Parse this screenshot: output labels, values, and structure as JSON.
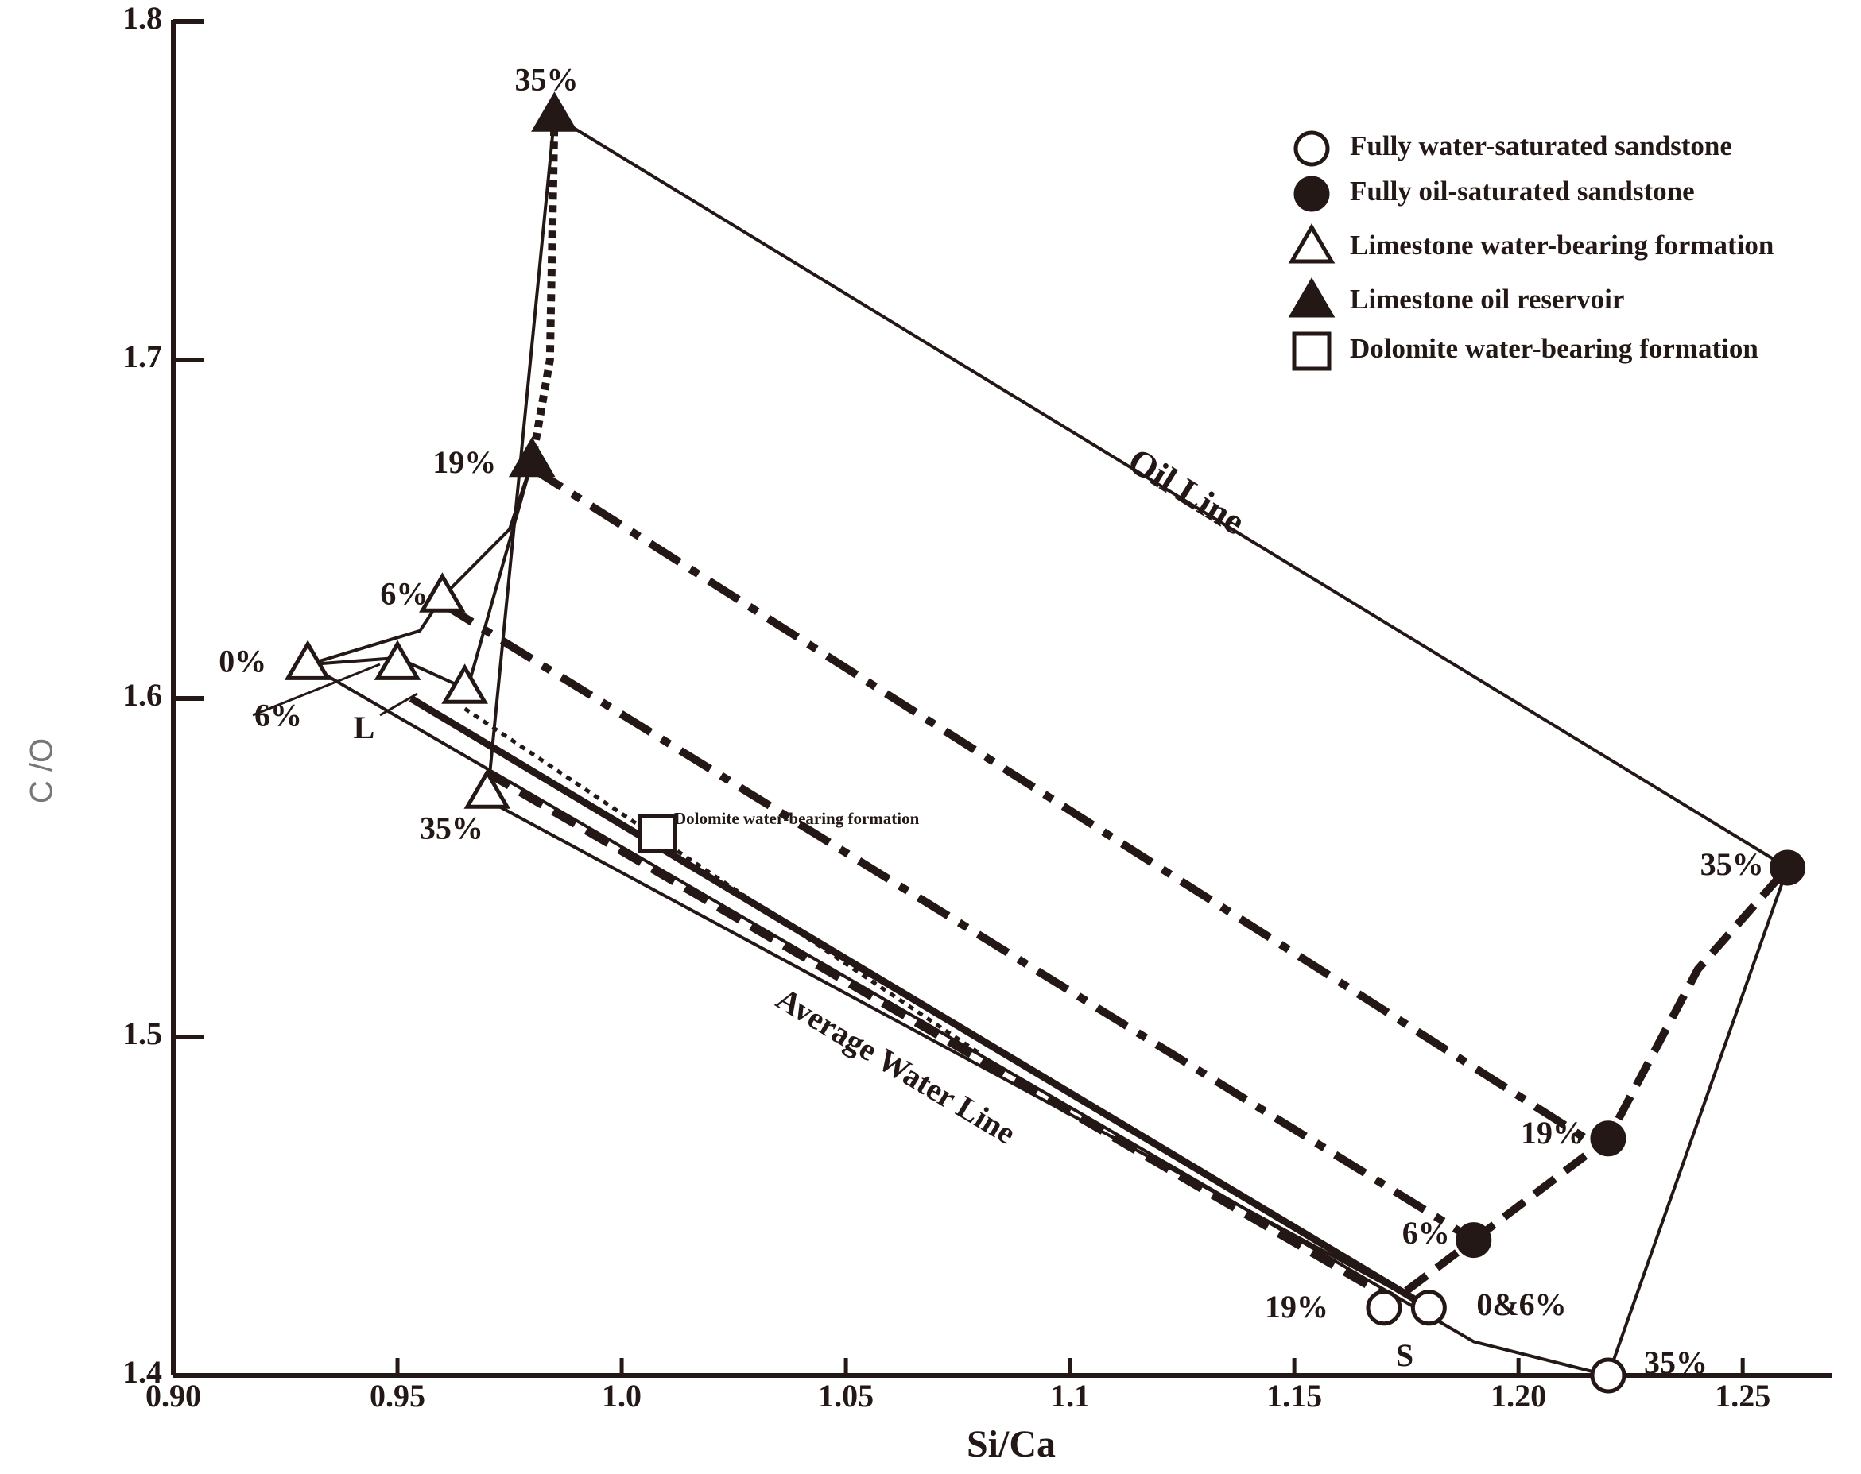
{
  "chart_data": {
    "type": "scatter",
    "x_label": "Si/Ca",
    "y_label": "C /O",
    "xlim": [
      0.9,
      1.27
    ],
    "ylim": [
      1.4,
      1.8
    ],
    "xticks": [
      {
        "value": 0.9,
        "label": "0.90"
      },
      0.95,
      {
        "value": 1,
        "label": "1.0"
      },
      1.05,
      1.1,
      1.15,
      {
        "value": 1.2,
        "label": "1.20"
      },
      1.25
    ],
    "yticks": [
      1.4,
      1.5,
      1.6,
      1.7,
      1.8
    ],
    "color": "#231815",
    "legend": "top-right",
    "series": [
      {
        "name": "Fully water-saturated sandstone",
        "marker": "circle",
        "filled": false,
        "x": [
          1.17,
          1.18,
          1.22
        ],
        "y": [
          1.42,
          1.42,
          1.4
        ],
        "point_labels": [
          "19%",
          "0&6%",
          "35%"
        ]
      },
      {
        "name": "Fully oil-saturated sandstone",
        "marker": "circle",
        "filled": true,
        "x": [
          1.19,
          1.22,
          1.26
        ],
        "y": [
          1.44,
          1.47,
          1.55
        ],
        "point_labels": [
          "6%",
          "19%",
          "35%"
        ]
      },
      {
        "name": "Limestone water-bearing formation",
        "marker": "triangle",
        "filled": false,
        "x": [
          0.93,
          0.95,
          0.96,
          0.965,
          0.97
        ],
        "y": [
          1.61,
          1.61,
          1.63,
          1.603,
          1.572
        ],
        "point_labels": [
          "0%",
          "6%",
          "6%",
          null,
          "35%"
        ]
      },
      {
        "name": "Limestone oil reservoir",
        "marker": "triangle",
        "filled": true,
        "x": [
          0.98,
          0.985
        ],
        "y": [
          1.67,
          1.772
        ],
        "point_labels": [
          "19%",
          "35%"
        ]
      },
      {
        "name": "Dolomite water-bearing formation",
        "marker": "square",
        "filled": false,
        "x": [
          1.008
        ],
        "y": [
          1.56
        ],
        "point_labels": [
          null
        ]
      }
    ],
    "lines": [
      {
        "style": "solid",
        "x": [
          0.985,
          1.26,
          1.22
        ],
        "y": [
          1.772,
          1.55,
          1.4
        ]
      },
      {
        "style": "solid",
        "x": [
          0.93,
          1.19,
          1.22
        ],
        "y": [
          1.61,
          1.41,
          1.4
        ]
      },
      {
        "style": "solid",
        "x": [
          0.97,
          1.18
        ],
        "y": [
          1.57,
          1.42
        ]
      },
      {
        "style": "solid-thick",
        "x": [
          0.953,
          1.18
        ],
        "y": [
          1.6,
          1.42
        ]
      },
      {
        "style": "solid",
        "x": [
          0.985,
          0.97
        ],
        "y": [
          1.772,
          1.57
        ]
      },
      {
        "style": "solid",
        "x": [
          0.93,
          0.955,
          0.96,
          0.975,
          0.98
        ],
        "y": [
          1.61,
          1.62,
          1.63,
          1.65,
          1.67
        ]
      },
      {
        "style": "solid",
        "x": [
          0.93,
          0.95,
          0.965
        ],
        "y": [
          1.61,
          1.612,
          1.603
        ]
      },
      {
        "style": "solid",
        "x": [
          0.98,
          0.965
        ],
        "y": [
          1.67,
          1.6
        ]
      },
      {
        "style": "dash-dot",
        "x": [
          0.98,
          1.215
        ],
        "y": [
          1.668,
          1.47
        ]
      },
      {
        "style": "dash-dot",
        "x": [
          0.96,
          1.19
        ],
        "y": [
          1.628,
          1.44
        ]
      },
      {
        "style": "dashed",
        "x": [
          0.97,
          1.175
        ],
        "y": [
          1.578,
          1.42
        ]
      },
      {
        "style": "dotted",
        "x": [
          0.965,
          1.08
        ],
        "y": [
          1.597,
          1.495
        ]
      },
      {
        "style": "dashed",
        "x": [
          1.19,
          1.22,
          1.24,
          1.26
        ],
        "y": [
          1.44,
          1.47,
          1.52,
          1.55
        ]
      },
      {
        "style": "dotted-thick",
        "x": [
          0.985,
          0.984,
          0.98
        ],
        "y": [
          1.772,
          1.7,
          1.67
        ]
      },
      {
        "style": "dashed",
        "x": [
          1.175,
          1.19
        ],
        "y": [
          1.425,
          1.44
        ]
      }
    ],
    "annotations": [
      "Oil Line",
      "Average Water Line",
      "Dolomite water-bearing formation",
      "L",
      "S"
    ]
  }
}
